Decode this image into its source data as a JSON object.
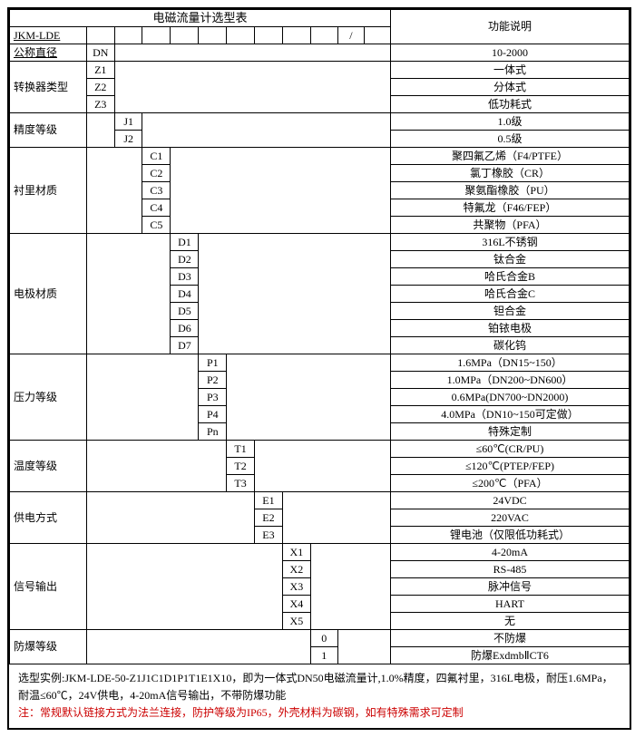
{
  "title": "电磁流量计选型表",
  "func_header": "功能说明",
  "model": "JKM-LDE",
  "sections": [
    {
      "label": "公称直径",
      "label_underline": true,
      "prefix": "DN",
      "codes": [],
      "desc": [
        "10-2000"
      ]
    },
    {
      "label": "转换器类型",
      "codes": [
        "Z1",
        "Z2",
        "Z3"
      ],
      "col": 1,
      "desc": [
        "一体式",
        "分体式",
        "低功耗式"
      ]
    },
    {
      "label": "精度等级",
      "codes": [
        "J1",
        "J2"
      ],
      "col": 2,
      "desc": [
        "1.0级",
        "0.5级"
      ]
    },
    {
      "label": "衬里材质",
      "codes": [
        "C1",
        "C2",
        "C3",
        "C4",
        "C5"
      ],
      "col": 3,
      "desc": [
        "聚四氟乙烯（F4/PTFE）",
        "氯丁橡胶（CR）",
        "聚氨酯橡胶（PU）",
        "特氟龙（F46/FEP）",
        "共聚物（PFA）"
      ]
    },
    {
      "label": "电极材质",
      "codes": [
        "D1",
        "D2",
        "D3",
        "D4",
        "D5",
        "D6",
        "D7"
      ],
      "col": 4,
      "desc": [
        "316L不锈钢",
        "钛合金",
        "哈氏合金B",
        "哈氏合金C",
        "钽合金",
        "铂铱电极",
        "碳化钨"
      ]
    },
    {
      "label": "压力等级",
      "codes": [
        "P1",
        "P2",
        "P3",
        "P4",
        "Pn"
      ],
      "col": 5,
      "desc": [
        "1.6MPa（DN15~150）",
        "1.0MPa（DN200~DN600）",
        "0.6MPa(DN700~DN2000)",
        "4.0MPa（DN10~150可定做）",
        "特殊定制"
      ]
    },
    {
      "label": "温度等级",
      "codes": [
        "T1",
        "T2",
        "T3"
      ],
      "col": 6,
      "desc": [
        "≤60℃(CR/PU)",
        "≤120℃(PTEP/FEP)",
        "≤200℃（PFA）"
      ]
    },
    {
      "label": "供电方式",
      "codes": [
        "E1",
        "E2",
        "E3"
      ],
      "col": 7,
      "desc": [
        "24VDC",
        "220VAC",
        "锂电池（仅限低功耗式）"
      ]
    },
    {
      "label": "信号输出",
      "codes": [
        "X1",
        "X2",
        "X3",
        "X4",
        "X5"
      ],
      "col": 8,
      "desc": [
        "4-20mA",
        "RS-485",
        "脉冲信号",
        "HART",
        "无"
      ]
    },
    {
      "label": "防爆等级",
      "codes": [
        "0",
        "1"
      ],
      "col": 9,
      "desc": [
        "不防爆",
        "防爆ExdmbⅡCT6"
      ]
    }
  ],
  "notes": {
    "line1": "选型实例:JKM-LDE-50-Z1J1C1D1P1T1E1X10，即为一体式DN50电磁流量计,1.0%精度，四氟衬里，316L电极，耐压1.6MPa，耐温≤60℃，24V供电，4-20mA信号输出，不带防爆功能",
    "line2": "注：常规默认链接方式为法兰连接，防护等级为IP65，外壳材料为碳钢，如有特殊需求可定制"
  }
}
